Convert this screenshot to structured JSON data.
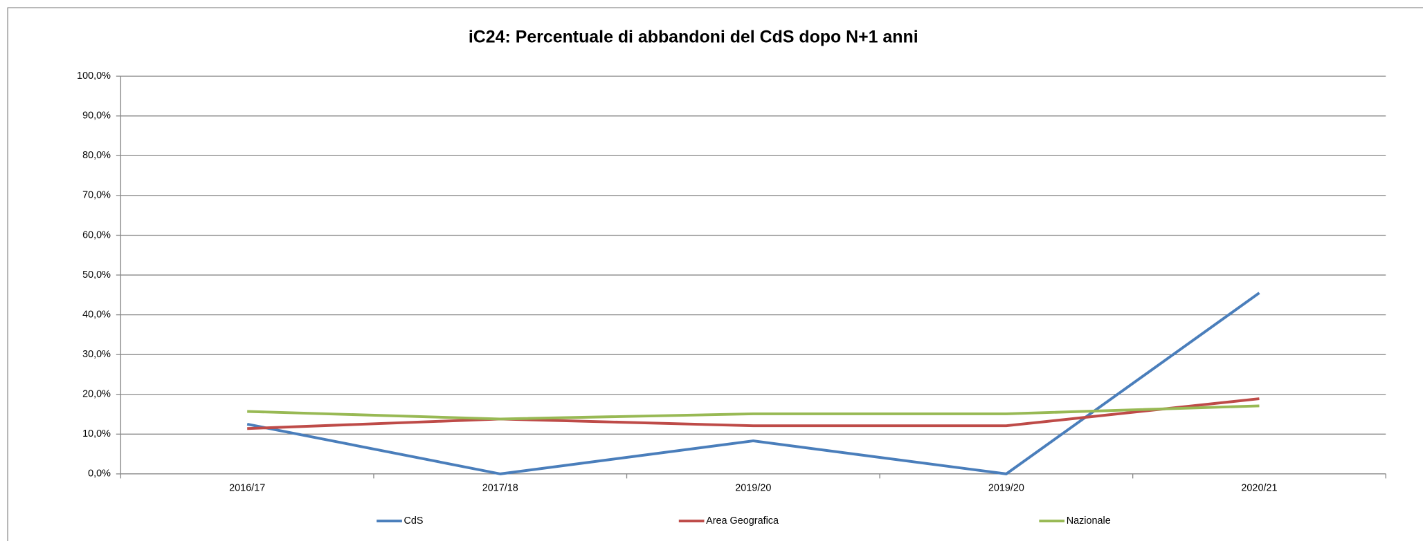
{
  "chart_data": {
    "type": "line",
    "title": "iC24: Percentuale di abbandoni del CdS dopo N+1 anni",
    "categories": [
      "2016/17",
      "2017/18",
      "2019/20",
      "2019/20",
      "2020/21"
    ],
    "series": [
      {
        "name": "CdS",
        "color": "#4a7ebb",
        "values": [
          12.5,
          0,
          8.3,
          0,
          45.5
        ]
      },
      {
        "name": "Area Geografica",
        "color": "#be4b48",
        "values": [
          11.4,
          13.8,
          12.1,
          12.1,
          18.9
        ]
      },
      {
        "name": "Nazionale",
        "color": "#98b954",
        "values": [
          15.7,
          13.8,
          15.1,
          15.1,
          17.1
        ]
      }
    ],
    "ylim": [
      0,
      100
    ],
    "yticks": [
      {
        "value": 0,
        "label": "0,0%"
      },
      {
        "value": 10,
        "label": "10,0%"
      },
      {
        "value": 20,
        "label": "20,0%"
      },
      {
        "value": 30,
        "label": "30,0%"
      },
      {
        "value": 40,
        "label": "40,0%"
      },
      {
        "value": 50,
        "label": "50,0%"
      },
      {
        "value": 60,
        "label": "60,0%"
      },
      {
        "value": 70,
        "label": "70,0%"
      },
      {
        "value": 80,
        "label": "80,0%"
      },
      {
        "value": 90,
        "label": "90,0%"
      },
      {
        "value": 100,
        "label": "100,0%"
      }
    ],
    "grid": true,
    "legend": "bottom"
  }
}
